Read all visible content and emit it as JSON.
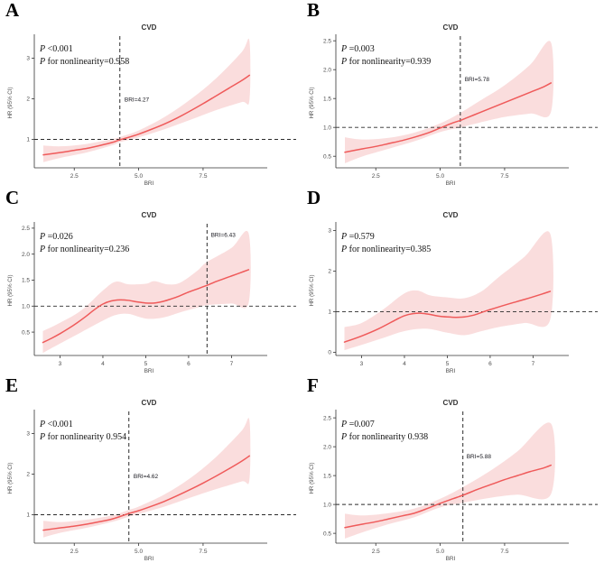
{
  "figure": {
    "outcome_title": "CVD",
    "x_axis_label": "BRI",
    "y_axis_label": "HR (95% CI)",
    "line_color": "#ef5a5a",
    "band_color": "#f9d7d7",
    "dash_color": "#2b2b2b",
    "axis_color": "#333333",
    "tick_label_color": "#4d4d4d"
  },
  "chart_data": [
    {
      "type": "line",
      "letter": "A",
      "title": "CVD",
      "stats": [
        {
          "lead": "P",
          "rest": " <0.001"
        },
        {
          "lead": "P",
          "rest": " for nonlinearity=0.958"
        }
      ],
      "xlabel": "BRI",
      "ylabel": "HR (95% CI)",
      "xlim": [
        0.95,
        9.85
      ],
      "ylim": [
        0.3,
        3.5
      ],
      "xticks": [
        2.5,
        5.0,
        7.5
      ],
      "xtick_labels": [
        "2.5",
        "5.0",
        "7.5"
      ],
      "yticks": [
        1,
        2,
        3
      ],
      "ytick_labels": [
        "1",
        "2",
        "3"
      ],
      "href": 1.0,
      "vref": 4.27,
      "vref_label": "BRI=4.27",
      "vref_label_pos": [
        4.45,
        1.93
      ],
      "curve": [
        [
          1.3,
          0.62
        ],
        [
          2,
          0.68
        ],
        [
          2.5,
          0.73
        ],
        [
          3,
          0.78
        ],
        [
          3.5,
          0.85
        ],
        [
          4,
          0.93
        ],
        [
          4.27,
          0.99
        ],
        [
          4.5,
          1.03
        ],
        [
          5,
          1.13
        ],
        [
          5.5,
          1.25
        ],
        [
          6,
          1.38
        ],
        [
          6.5,
          1.53
        ],
        [
          7,
          1.7
        ],
        [
          7.5,
          1.88
        ],
        [
          8,
          2.07
        ],
        [
          8.5,
          2.26
        ],
        [
          9,
          2.45
        ],
        [
          9.3,
          2.58
        ]
      ],
      "lower": [
        [
          1.3,
          0.44
        ],
        [
          2,
          0.55
        ],
        [
          3,
          0.68
        ],
        [
          4,
          0.86
        ],
        [
          4.27,
          0.93
        ],
        [
          5,
          1.05
        ],
        [
          6,
          1.25
        ],
        [
          7,
          1.48
        ],
        [
          8,
          1.72
        ],
        [
          9,
          1.92
        ],
        [
          9.3,
          1.97
        ]
      ],
      "upper": [
        [
          1.3,
          0.85
        ],
        [
          2,
          0.83
        ],
        [
          3,
          0.89
        ],
        [
          4,
          1.01
        ],
        [
          4.27,
          1.06
        ],
        [
          5,
          1.22
        ],
        [
          6,
          1.55
        ],
        [
          7,
          1.98
        ],
        [
          8,
          2.5
        ],
        [
          9,
          3.15
        ],
        [
          9.3,
          3.42
        ]
      ]
    },
    {
      "type": "line",
      "letter": "B",
      "title": "CVD",
      "stats": [
        {
          "lead": "P",
          "rest": " =0.003"
        },
        {
          "lead": "P",
          "rest": " for nonlinearity=0.939"
        }
      ],
      "xlabel": "BRI",
      "ylabel": "HR (95% CI)",
      "xlim": [
        0.95,
        9.85
      ],
      "ylim": [
        0.3,
        2.55
      ],
      "xticks": [
        2.5,
        5.0,
        7.5
      ],
      "xtick_labels": [
        "2.5",
        "5.0",
        "7.5"
      ],
      "yticks": [
        0.5,
        1.0,
        1.5,
        2.0,
        2.5
      ],
      "ytick_labels": [
        "0.5",
        "1.0",
        "1.5",
        "2.0",
        "2.5"
      ],
      "href": 1.0,
      "vref": 5.78,
      "vref_label": "BRI=5.78",
      "vref_label_pos": [
        5.95,
        1.8
      ],
      "curve": [
        [
          1.3,
          0.57
        ],
        [
          2,
          0.63
        ],
        [
          2.5,
          0.67
        ],
        [
          3,
          0.72
        ],
        [
          3.5,
          0.77
        ],
        [
          4,
          0.83
        ],
        [
          4.5,
          0.9
        ],
        [
          5,
          0.99
        ],
        [
          5.5,
          1.08
        ],
        [
          5.78,
          1.12
        ],
        [
          6,
          1.16
        ],
        [
          6.5,
          1.25
        ],
        [
          7,
          1.34
        ],
        [
          7.5,
          1.43
        ],
        [
          8,
          1.52
        ],
        [
          8.5,
          1.61
        ],
        [
          9,
          1.7
        ],
        [
          9.3,
          1.77
        ]
      ],
      "lower": [
        [
          1.3,
          0.38
        ],
        [
          2,
          0.5
        ],
        [
          3,
          0.63
        ],
        [
          4,
          0.76
        ],
        [
          5,
          0.92
        ],
        [
          5.78,
          1.0
        ],
        [
          6.5,
          1.08
        ],
        [
          7.5,
          1.18
        ],
        [
          8.5,
          1.24
        ],
        [
          9.3,
          1.27
        ]
      ],
      "upper": [
        [
          1.3,
          0.83
        ],
        [
          2,
          0.79
        ],
        [
          3,
          0.82
        ],
        [
          4,
          0.91
        ],
        [
          5,
          1.07
        ],
        [
          5.78,
          1.25
        ],
        [
          6.5,
          1.45
        ],
        [
          7.5,
          1.73
        ],
        [
          8.5,
          2.09
        ],
        [
          9.3,
          2.47
        ]
      ]
    },
    {
      "type": "line",
      "letter": "C",
      "title": "CVD",
      "stats": [
        {
          "lead": "P",
          "rest": " =0.026"
        },
        {
          "lead": "P",
          "rest": " for nonlinearity=0.236"
        }
      ],
      "xlabel": "BRI",
      "ylabel": "HR (95% CI)",
      "xlim": [
        2.4,
        7.75
      ],
      "ylim": [
        0.05,
        2.55
      ],
      "xticks": [
        3,
        4,
        5,
        6,
        7
      ],
      "xtick_labels": [
        "3",
        "4",
        "5",
        "6",
        "7"
      ],
      "yticks": [
        0.5,
        1.0,
        1.5,
        2.0,
        2.5
      ],
      "ytick_labels": [
        "0.5",
        "1.0",
        "1.5",
        "2.0",
        "2.5"
      ],
      "href": 1.0,
      "vref": 6.43,
      "vref_label": "BRI=6.43",
      "vref_label_pos": [
        6.52,
        2.33
      ],
      "curve": [
        [
          2.6,
          0.3
        ],
        [
          2.8,
          0.38
        ],
        [
          3.0,
          0.47
        ],
        [
          3.2,
          0.57
        ],
        [
          3.4,
          0.68
        ],
        [
          3.6,
          0.8
        ],
        [
          3.8,
          0.93
        ],
        [
          4.0,
          1.04
        ],
        [
          4.2,
          1.1
        ],
        [
          4.4,
          1.12
        ],
        [
          4.6,
          1.11
        ],
        [
          4.8,
          1.08
        ],
        [
          5.0,
          1.06
        ],
        [
          5.2,
          1.06
        ],
        [
          5.4,
          1.09
        ],
        [
          5.6,
          1.14
        ],
        [
          5.8,
          1.2
        ],
        [
          6.0,
          1.27
        ],
        [
          6.2,
          1.33
        ],
        [
          6.43,
          1.4
        ],
        [
          6.6,
          1.46
        ],
        [
          6.8,
          1.52
        ],
        [
          7.0,
          1.58
        ],
        [
          7.2,
          1.64
        ],
        [
          7.4,
          1.7
        ]
      ],
      "lower": [
        [
          2.6,
          0.1
        ],
        [
          3.0,
          0.28
        ],
        [
          3.5,
          0.5
        ],
        [
          4.0,
          0.72
        ],
        [
          4.3,
          0.83
        ],
        [
          4.6,
          0.85
        ],
        [
          5.0,
          0.76
        ],
        [
          5.4,
          0.78
        ],
        [
          5.8,
          0.88
        ],
        [
          6.2,
          0.97
        ],
        [
          6.43,
          1.02
        ],
        [
          7.0,
          1.05
        ],
        [
          7.4,
          1.06
        ]
      ],
      "upper": [
        [
          2.6,
          0.52
        ],
        [
          3.0,
          0.68
        ],
        [
          3.5,
          0.92
        ],
        [
          4.0,
          1.3
        ],
        [
          4.3,
          1.47
        ],
        [
          4.6,
          1.42
        ],
        [
          5.0,
          1.43
        ],
        [
          5.2,
          1.48
        ],
        [
          5.5,
          1.42
        ],
        [
          5.8,
          1.45
        ],
        [
          6.2,
          1.68
        ],
        [
          6.43,
          1.85
        ],
        [
          7.0,
          2.12
        ],
        [
          7.4,
          2.4
        ]
      ]
    },
    {
      "type": "line",
      "letter": "D",
      "title": "CVD",
      "stats": [
        {
          "lead": "P",
          "rest": " =0.579"
        },
        {
          "lead": "P",
          "rest": " for nonlinearity=0.385"
        }
      ],
      "xlabel": "BRI",
      "ylabel": "HR (95% CI)",
      "xlim": [
        2.4,
        7.75
      ],
      "ylim": [
        -0.08,
        3.12
      ],
      "xticks": [
        3,
        4,
        5,
        6,
        7
      ],
      "xtick_labels": [
        "3",
        "4",
        "5",
        "6",
        "7"
      ],
      "yticks": [
        0,
        1,
        2,
        3
      ],
      "ytick_labels": [
        "0",
        "1",
        "2",
        "3"
      ],
      "href": 1.0,
      "vref": null,
      "vref_label": null,
      "vref_label_pos": null,
      "curve": [
        [
          2.6,
          0.25
        ],
        [
          3.0,
          0.4
        ],
        [
          3.4,
          0.58
        ],
        [
          3.8,
          0.8
        ],
        [
          4.0,
          0.9
        ],
        [
          4.2,
          0.95
        ],
        [
          4.4,
          0.96
        ],
        [
          4.6,
          0.93
        ],
        [
          4.8,
          0.89
        ],
        [
          5.0,
          0.87
        ],
        [
          5.2,
          0.86
        ],
        [
          5.4,
          0.87
        ],
        [
          5.6,
          0.91
        ],
        [
          5.8,
          0.98
        ],
        [
          6.0,
          1.05
        ],
        [
          6.4,
          1.18
        ],
        [
          6.8,
          1.3
        ],
        [
          7.2,
          1.43
        ],
        [
          7.4,
          1.5
        ]
      ],
      "lower": [
        [
          2.6,
          0.05
        ],
        [
          3.0,
          0.18
        ],
        [
          3.5,
          0.35
        ],
        [
          4.0,
          0.52
        ],
        [
          4.5,
          0.58
        ],
        [
          5.0,
          0.48
        ],
        [
          5.4,
          0.42
        ],
        [
          5.8,
          0.52
        ],
        [
          6.2,
          0.62
        ],
        [
          6.8,
          0.72
        ],
        [
          7.4,
          0.8
        ]
      ],
      "upper": [
        [
          2.6,
          0.62
        ],
        [
          3.0,
          0.72
        ],
        [
          3.5,
          1.05
        ],
        [
          4.0,
          1.45
        ],
        [
          4.3,
          1.52
        ],
        [
          4.6,
          1.4
        ],
        [
          5.0,
          1.35
        ],
        [
          5.4,
          1.33
        ],
        [
          5.8,
          1.5
        ],
        [
          6.2,
          1.85
        ],
        [
          6.8,
          2.35
        ],
        [
          7.4,
          2.92
        ]
      ]
    },
    {
      "type": "line",
      "letter": "E",
      "title": "CVD",
      "stats": [
        {
          "lead": "P",
          "rest": " <0.001"
        },
        {
          "lead": "P",
          "rest": " for nonlinearity 0.954"
        }
      ],
      "xlabel": "BRI",
      "ylabel": "HR (95% CI)",
      "xlim": [
        0.95,
        9.85
      ],
      "ylim": [
        0.3,
        3.5
      ],
      "xticks": [
        2.5,
        5.0,
        7.5
      ],
      "xtick_labels": [
        "2.5",
        "5.0",
        "7.5"
      ],
      "yticks": [
        1,
        2,
        3
      ],
      "ytick_labels": [
        "1",
        "2",
        "3"
      ],
      "href": 1.0,
      "vref": 4.62,
      "vref_label": "BRI=4.62",
      "vref_label_pos": [
        4.8,
        1.9
      ],
      "curve": [
        [
          1.3,
          0.62
        ],
        [
          2,
          0.68
        ],
        [
          2.5,
          0.72
        ],
        [
          3,
          0.77
        ],
        [
          3.5,
          0.83
        ],
        [
          4,
          0.9
        ],
        [
          4.62,
          1.03
        ],
        [
          5,
          1.1
        ],
        [
          5.5,
          1.21
        ],
        [
          6,
          1.33
        ],
        [
          6.5,
          1.47
        ],
        [
          7,
          1.62
        ],
        [
          7.5,
          1.78
        ],
        [
          8,
          1.95
        ],
        [
          8.5,
          2.13
        ],
        [
          9,
          2.32
        ],
        [
          9.3,
          2.45
        ]
      ],
      "lower": [
        [
          1.3,
          0.44
        ],
        [
          2,
          0.56
        ],
        [
          3,
          0.68
        ],
        [
          4,
          0.83
        ],
        [
          4.62,
          0.95
        ],
        [
          5,
          1.02
        ],
        [
          6,
          1.2
        ],
        [
          7,
          1.42
        ],
        [
          8,
          1.63
        ],
        [
          9,
          1.82
        ],
        [
          9.3,
          1.87
        ]
      ],
      "upper": [
        [
          1.3,
          0.85
        ],
        [
          2,
          0.82
        ],
        [
          3,
          0.88
        ],
        [
          4,
          0.99
        ],
        [
          4.62,
          1.12
        ],
        [
          5,
          1.2
        ],
        [
          6,
          1.5
        ],
        [
          7,
          1.9
        ],
        [
          8,
          2.42
        ],
        [
          9,
          3.07
        ],
        [
          9.3,
          3.32
        ]
      ]
    },
    {
      "type": "line",
      "letter": "F",
      "title": "CVD",
      "stats": [
        {
          "lead": "P",
          "rest": " =0.007"
        },
        {
          "lead": "P",
          "rest": " for nonlinearity 0.938"
        }
      ],
      "xlabel": "BRI",
      "ylabel": "HR (95% CI)",
      "xlim": [
        0.95,
        9.85
      ],
      "ylim": [
        0.33,
        2.58
      ],
      "xticks": [
        2.5,
        5.0,
        7.5
      ],
      "xtick_labels": [
        "2.5",
        "5.0",
        "7.5"
      ],
      "yticks": [
        0.5,
        1.0,
        1.5,
        2.0,
        2.5
      ],
      "ytick_labels": [
        "0.5",
        "1.0",
        "1.5",
        "2.0",
        "2.5"
      ],
      "href": 1.0,
      "vref": 5.88,
      "vref_label": "BRI=5.88",
      "vref_label_pos": [
        6.02,
        1.8
      ],
      "curve": [
        [
          1.3,
          0.6
        ],
        [
          2,
          0.66
        ],
        [
          2.5,
          0.7
        ],
        [
          3,
          0.75
        ],
        [
          3.5,
          0.8
        ],
        [
          4,
          0.85
        ],
        [
          4.5,
          0.93
        ],
        [
          5,
          1.02
        ],
        [
          5.5,
          1.1
        ],
        [
          5.88,
          1.16
        ],
        [
          6.5,
          1.27
        ],
        [
          7,
          1.35
        ],
        [
          7.5,
          1.43
        ],
        [
          8,
          1.5
        ],
        [
          8.5,
          1.57
        ],
        [
          9,
          1.63
        ],
        [
          9.3,
          1.68
        ]
      ],
      "lower": [
        [
          1.3,
          0.41
        ],
        [
          2,
          0.52
        ],
        [
          3,
          0.66
        ],
        [
          4,
          0.78
        ],
        [
          5,
          0.95
        ],
        [
          5.88,
          1.03
        ],
        [
          7,
          1.12
        ],
        [
          8,
          1.17
        ],
        [
          9.3,
          1.18
        ]
      ],
      "upper": [
        [
          1.3,
          0.84
        ],
        [
          2,
          0.81
        ],
        [
          3,
          0.85
        ],
        [
          4,
          0.93
        ],
        [
          5,
          1.1
        ],
        [
          5.88,
          1.3
        ],
        [
          7,
          1.6
        ],
        [
          8,
          1.92
        ],
        [
          9.3,
          2.4
        ]
      ]
    }
  ]
}
